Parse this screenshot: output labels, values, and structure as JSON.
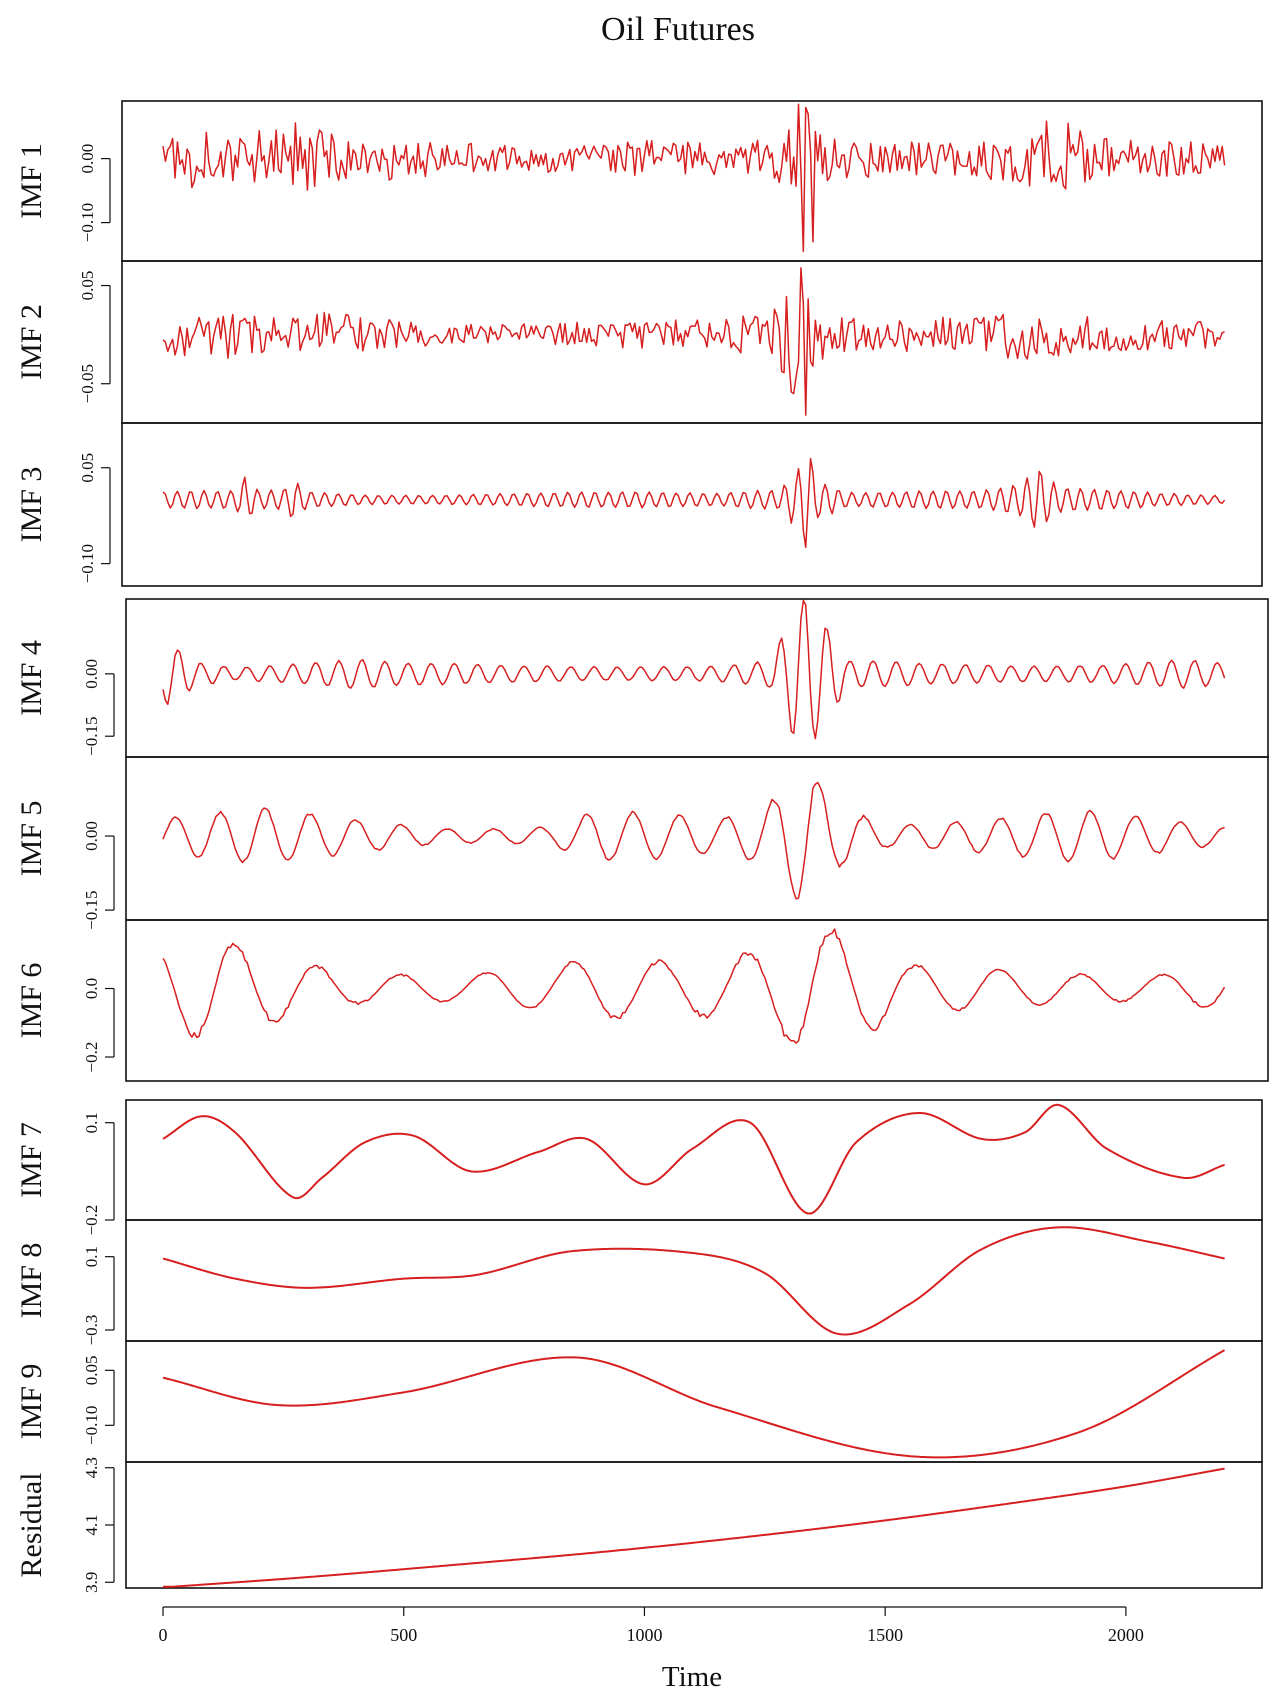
{
  "chart_data": {
    "type": "line",
    "title": "Oil Futures",
    "xlabel": "Time",
    "xlim": [
      0,
      2210
    ],
    "x_ticks": [
      0,
      500,
      1000,
      1500,
      2000
    ],
    "x_tick_labels": [
      "0",
      "500",
      "1000",
      "1500",
      "2000"
    ],
    "grid": false,
    "legend": "none",
    "line_color": "#d71f1f",
    "sample_count": 442,
    "sample_step": 5,
    "series": [
      {
        "name": "IMF 1",
        "ylim": [
          -0.16,
          0.09
        ],
        "y_ticks": [
          -0.1,
          0.0
        ],
        "y_tick_labels": [
          "−0.10",
          "0.00"
        ],
        "shape": "noise",
        "amplitude": 0.017,
        "envelope": [
          [
            0,
            1.0
          ],
          [
            70,
            1.8
          ],
          [
            150,
            1.2
          ],
          [
            270,
            2.0
          ],
          [
            380,
            1.1
          ],
          [
            450,
            1.2
          ],
          [
            650,
            0.8
          ],
          [
            900,
            0.7
          ],
          [
            1000,
            1.0
          ],
          [
            1100,
            0.9
          ],
          [
            1200,
            0.8
          ],
          [
            1290,
            1.8
          ],
          [
            1320,
            3.5
          ],
          [
            1340,
            2.8
          ],
          [
            1380,
            1.2
          ],
          [
            1500,
            1.0
          ],
          [
            1600,
            0.9
          ],
          [
            1700,
            1.0
          ],
          [
            1790,
            1.6
          ],
          [
            1850,
            2.2
          ],
          [
            1950,
            1.3
          ],
          [
            2100,
            1.0
          ],
          [
            2205,
            0.7
          ]
        ],
        "spikes": [
          [
            1322,
            0.085
          ],
          [
            1330,
            -0.145
          ],
          [
            1342,
            0.07
          ],
          [
            1348,
            -0.13
          ]
        ]
      },
      {
        "name": "IMF 2",
        "ylim": [
          -0.09,
          0.075
        ],
        "y_ticks": [
          -0.05,
          0.05
        ],
        "y_tick_labels": [
          "−0.05",
          "0.05"
        ],
        "shape": "noise",
        "amplitude": 0.011,
        "envelope": [
          [
            0,
            1.0
          ],
          [
            80,
            1.4
          ],
          [
            170,
            1.3
          ],
          [
            270,
            0.9
          ],
          [
            360,
            1.4
          ],
          [
            500,
            0.7
          ],
          [
            700,
            0.6
          ],
          [
            900,
            0.7
          ],
          [
            1050,
            0.8
          ],
          [
            1150,
            0.9
          ],
          [
            1260,
            1.2
          ],
          [
            1300,
            3.6
          ],
          [
            1330,
            3.0
          ],
          [
            1380,
            1.0
          ],
          [
            1500,
            0.9
          ],
          [
            1700,
            1.0
          ],
          [
            1800,
            1.5
          ],
          [
            1900,
            1.0
          ],
          [
            2100,
            0.8
          ],
          [
            2205,
            0.7
          ]
        ],
        "spikes": [
          [
            1325,
            0.068
          ],
          [
            1335,
            -0.082
          ],
          [
            1308,
            -0.06
          ]
        ]
      },
      {
        "name": "IMF 3",
        "ylim": [
          -0.135,
          0.12
        ],
        "y_ticks": [
          -0.1,
          0.05
        ],
        "y_tick_labels": [
          "−0.10",
          "0.05"
        ],
        "shape": "oscillation",
        "amplitude": 0.01,
        "period": 28,
        "envelope": [
          [
            0,
            1.0
          ],
          [
            150,
            1.2
          ],
          [
            170,
            3.0
          ],
          [
            200,
            1.2
          ],
          [
            250,
            1.5
          ],
          [
            270,
            3.2
          ],
          [
            300,
            1.4
          ],
          [
            450,
            0.9
          ],
          [
            700,
            0.9
          ],
          [
            1000,
            1.0
          ],
          [
            1150,
            1.0
          ],
          [
            1280,
            2.0
          ],
          [
            1310,
            5.0
          ],
          [
            1340,
            11.0
          ],
          [
            1360,
            4.0
          ],
          [
            1420,
            1.4
          ],
          [
            1600,
            1.3
          ],
          [
            1700,
            1.1
          ],
          [
            1780,
            2.0
          ],
          [
            1820,
            4.0
          ],
          [
            1860,
            1.6
          ],
          [
            2000,
            1.4
          ],
          [
            2205,
            0.8
          ]
        ]
      },
      {
        "name": "IMF 4",
        "ylim": [
          -0.2,
          0.18
        ],
        "y_ticks": [
          -0.15,
          0.0
        ],
        "y_tick_labels": [
          "−0.15",
          "0.00"
        ],
        "shape": "oscillation",
        "amplitude": 0.022,
        "period": 48,
        "envelope": [
          [
            0,
            4.0
          ],
          [
            30,
            3.5
          ],
          [
            70,
            1.6
          ],
          [
            150,
            0.9
          ],
          [
            300,
            1.3
          ],
          [
            400,
            1.5
          ],
          [
            500,
            1.0
          ],
          [
            700,
            0.8
          ],
          [
            900,
            0.9
          ],
          [
            1050,
            1.0
          ],
          [
            1150,
            0.9
          ],
          [
            1260,
            1.3
          ],
          [
            1300,
            5.0
          ],
          [
            1330,
            8.0
          ],
          [
            1360,
            5.5
          ],
          [
            1420,
            1.2
          ],
          [
            1600,
            1.0
          ],
          [
            1800,
            1.1
          ],
          [
            2000,
            1.2
          ],
          [
            2100,
            1.5
          ],
          [
            2205,
            1.0
          ]
        ]
      },
      {
        "name": "IMF 5",
        "ylim": [
          -0.17,
          0.16
        ],
        "y_ticks": [
          -0.15,
          0.0
        ],
        "y_tick_labels": [
          "−0.15",
          "0.00"
        ],
        "shape": "oscillation",
        "amplitude": 0.03,
        "period": 95,
        "envelope": [
          [
            0,
            1.2
          ],
          [
            200,
            1.5
          ],
          [
            400,
            1.0
          ],
          [
            600,
            0.6
          ],
          [
            800,
            0.7
          ],
          [
            900,
            1.6
          ],
          [
            1000,
            1.3
          ],
          [
            1150,
            0.9
          ],
          [
            1250,
            1.6
          ],
          [
            1300,
            3.5
          ],
          [
            1340,
            5.0
          ],
          [
            1400,
            2.5
          ],
          [
            1500,
            1.0
          ],
          [
            1700,
            1.2
          ],
          [
            1900,
            1.4
          ],
          [
            2050,
            1.0
          ],
          [
            2205,
            0.6
          ]
        ]
      },
      {
        "name": "IMF 6",
        "ylim": [
          -0.27,
          0.2
        ],
        "y_ticks": [
          -0.2,
          0.0
        ],
        "y_tick_labels": [
          "−0.2",
          "0.0"
        ],
        "shape": "oscillation",
        "amplitude": 0.055,
        "period": 175,
        "envelope": [
          [
            0,
            1.8
          ],
          [
            120,
            2.7
          ],
          [
            260,
            2.0
          ],
          [
            400,
            1.0
          ],
          [
            600,
            0.6
          ],
          [
            800,
            0.9
          ],
          [
            900,
            1.4
          ],
          [
            1100,
            1.7
          ],
          [
            1280,
            3.0
          ],
          [
            1340,
            4.2
          ],
          [
            1420,
            2.6
          ],
          [
            1550,
            1.0
          ],
          [
            1800,
            0.8
          ],
          [
            2050,
            0.9
          ],
          [
            2205,
            1.3
          ]
        ]
      },
      {
        "name": "IMF 7",
        "ylim": [
          -0.2,
          0.17
        ],
        "y_ticks": [
          -0.2,
          0.1
        ],
        "y_tick_labels": [
          "−0.2",
          "0.1"
        ],
        "shape": "curve",
        "points": [
          [
            0,
            0.05
          ],
          [
            80,
            0.12
          ],
          [
            150,
            0.07
          ],
          [
            270,
            -0.13
          ],
          [
            330,
            -0.07
          ],
          [
            420,
            0.04
          ],
          [
            520,
            0.06
          ],
          [
            640,
            -0.05
          ],
          [
            780,
            0.01
          ],
          [
            880,
            0.05
          ],
          [
            1000,
            -0.09
          ],
          [
            1100,
            0.02
          ],
          [
            1220,
            0.1
          ],
          [
            1340,
            -0.18
          ],
          [
            1440,
            0.04
          ],
          [
            1570,
            0.13
          ],
          [
            1700,
            0.05
          ],
          [
            1790,
            0.07
          ],
          [
            1860,
            0.155
          ],
          [
            1960,
            0.02
          ],
          [
            2120,
            -0.07
          ],
          [
            2205,
            -0.03
          ]
        ]
      },
      {
        "name": "IMF 8",
        "ylim": [
          -0.36,
          0.3
        ],
        "y_ticks": [
          -0.3,
          0.1
        ],
        "y_tick_labels": [
          "−0.3",
          "0.1"
        ],
        "shape": "curve",
        "points": [
          [
            0,
            0.09
          ],
          [
            150,
            -0.02
          ],
          [
            300,
            -0.07
          ],
          [
            500,
            -0.02
          ],
          [
            650,
            0.0
          ],
          [
            850,
            0.13
          ],
          [
            1100,
            0.12
          ],
          [
            1250,
            0.01
          ],
          [
            1400,
            -0.32
          ],
          [
            1550,
            -0.16
          ],
          [
            1700,
            0.14
          ],
          [
            1860,
            0.26
          ],
          [
            2050,
            0.18
          ],
          [
            2205,
            0.09
          ]
        ]
      },
      {
        "name": "IMF 9",
        "ylim": [
          -0.2,
          0.13
        ],
        "y_ticks": [
          -0.1,
          0.05
        ],
        "y_tick_labels": [
          "−0.10",
          "0.05"
        ],
        "shape": "curve",
        "points": [
          [
            0,
            0.03
          ],
          [
            240,
            -0.045
          ],
          [
            500,
            -0.01
          ],
          [
            860,
            0.085
          ],
          [
            1150,
            -0.05
          ],
          [
            1560,
            -0.185
          ],
          [
            1900,
            -0.12
          ],
          [
            2205,
            0.105
          ]
        ]
      },
      {
        "name": "Residual",
        "ylim": [
          3.88,
          4.32
        ],
        "y_ticks": [
          3.9,
          4.1,
          4.3
        ],
        "y_tick_labels": [
          "3.9",
          "4.1",
          "4.3"
        ],
        "shape": "curve",
        "points": [
          [
            0,
            3.882
          ],
          [
            300,
            3.918
          ],
          [
            600,
            3.96
          ],
          [
            900,
            4.004
          ],
          [
            1200,
            4.056
          ],
          [
            1500,
            4.116
          ],
          [
            1800,
            4.185
          ],
          [
            2000,
            4.235
          ],
          [
            2205,
            4.297
          ]
        ]
      }
    ]
  }
}
